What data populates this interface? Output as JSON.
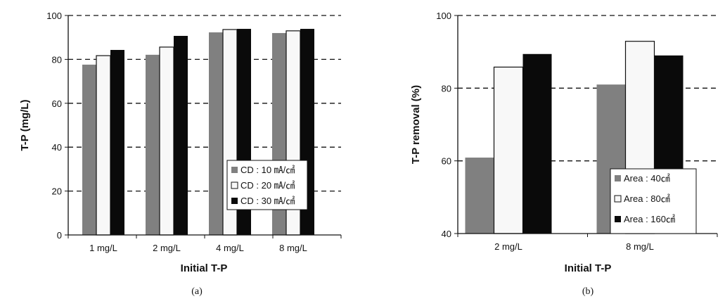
{
  "chart_data": [
    {
      "type": "bar",
      "caption": "(a)",
      "xlabel": "Initial T-P",
      "ylabel": "T-P (mg/L)",
      "ylim": [
        0,
        100
      ],
      "yticks": [
        "0",
        "20",
        "40",
        "60",
        "80",
        "100"
      ],
      "grid": "dashed horizontal",
      "legend_position": "lower-right",
      "categories": [
        "1 mg/L",
        "2 mg/L",
        "4 mg/L",
        "8 mg/L"
      ],
      "series": [
        {
          "name": "CD : 10 ㎃/㎠",
          "color": "#808080",
          "values": [
            77.6,
            82.1,
            92.3,
            92.0
          ]
        },
        {
          "name": "CD : 20 ㎃/㎠",
          "color": "#f8f8f8",
          "values": [
            81.7,
            85.6,
            93.6,
            93.0
          ]
        },
        {
          "name": "CD : 30 ㎃/㎠",
          "color": "#0a0a0a",
          "values": [
            84.3,
            90.7,
            93.9,
            93.9
          ]
        }
      ]
    },
    {
      "type": "bar",
      "caption": "(b)",
      "xlabel": "Initial T-P",
      "ylabel": "T-P removal (%)",
      "ylim": [
        40,
        100
      ],
      "yticks": [
        "40",
        "60",
        "80",
        "100"
      ],
      "grid": "dashed horizontal",
      "legend_position": "lower-right",
      "categories": [
        "2 mg/L",
        "8 mg/L"
      ],
      "series": [
        {
          "name": "Area : 40㎠",
          "color": "#808080",
          "values": [
            60.9,
            81.0
          ]
        },
        {
          "name": "Area : 80㎠",
          "color": "#f8f8f8",
          "values": [
            85.8,
            92.9
          ]
        },
        {
          "name": "Area : 160㎠",
          "color": "#0a0a0a",
          "values": [
            89.4,
            89.0
          ]
        }
      ]
    }
  ]
}
